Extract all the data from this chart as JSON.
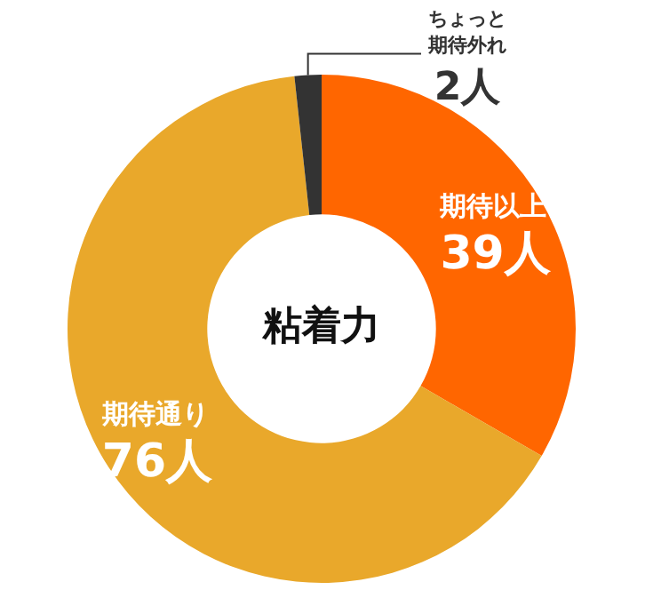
{
  "chart_data": {
    "type": "donut",
    "title": "粘着力",
    "categories": [
      "期待以上",
      "期待通り",
      "ちょっと期待外れ"
    ],
    "values": [
      39,
      76,
      2
    ],
    "colors": [
      "#ff6600",
      "#e9a82b",
      "#333333"
    ],
    "value_labels": [
      "39人",
      "76人",
      "2人"
    ],
    "legend": false
  }
}
